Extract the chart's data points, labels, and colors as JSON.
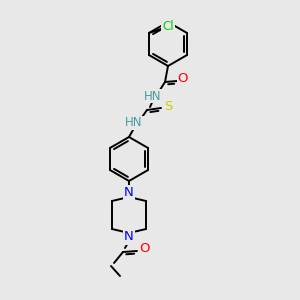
{
  "bg_color": "#e8e8e8",
  "bond_color": "#000000",
  "atom_colors": {
    "C": "#000000",
    "H": "#4a9a9a",
    "N": "#0000ff",
    "O": "#ff0000",
    "S": "#cccc00",
    "Cl": "#00cc00"
  },
  "figsize": [
    3.0,
    3.0
  ],
  "dpi": 100,
  "lw": 1.4,
  "fontsize": 8.5
}
